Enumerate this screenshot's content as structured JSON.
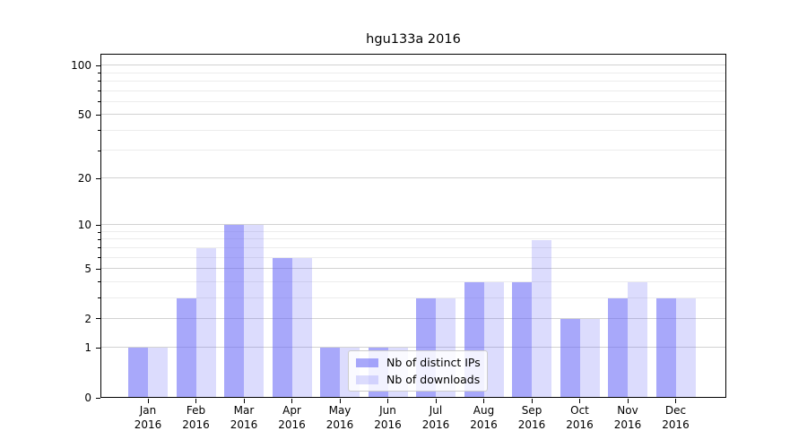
{
  "chart_data": {
    "type": "bar",
    "title": "hgu133a 2016",
    "categories": [
      "Jan",
      "Feb",
      "Mar",
      "Apr",
      "May",
      "Jun",
      "Jul",
      "Aug",
      "Sep",
      "Oct",
      "Nov",
      "Dec"
    ],
    "category_year": "2016",
    "series": [
      {
        "name": "Nb of distinct IPs",
        "color": "rgba(102,102,246,0.57)",
        "values": [
          1,
          3,
          10,
          6,
          1,
          1,
          3,
          4,
          4,
          2,
          3,
          3
        ]
      },
      {
        "name": "Nb of downloads",
        "color": "rgba(102,102,246,0.23)",
        "values": [
          1,
          7,
          10,
          6,
          1,
          1,
          3,
          4,
          8,
          2,
          4,
          3
        ]
      }
    ],
    "xlabel": "",
    "ylabel": "",
    "y_axis": {
      "scale": "log1p",
      "major_ticks": [
        0,
        1,
        2,
        5,
        10,
        20,
        50,
        100
      ],
      "minor_ticks": [
        3,
        4,
        6,
        7,
        8,
        9,
        30,
        40,
        60,
        70,
        80,
        90
      ],
      "ylim_bottom": 0
    },
    "grid": "on",
    "legend_position": "lower center",
    "colors": {
      "bar_dark_rendered": "#a8a8f8",
      "bar_light_rendered": "#dcdcf8",
      "major_grid": "#d2d2d2",
      "minor_grid": "#ececec",
      "spine": "#000000"
    }
  }
}
